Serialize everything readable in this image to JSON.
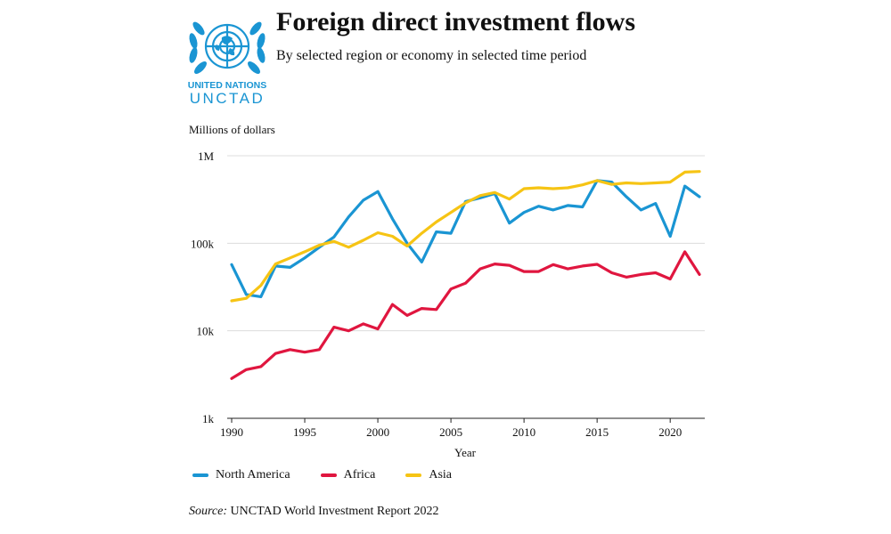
{
  "header": {
    "title": "Foreign direct investment flows",
    "subtitle": "By selected region or economy in selected time period"
  },
  "logo": {
    "org_name": "UNITED NATIONS",
    "org_short": "UNCTAD",
    "color": "#1a95d3"
  },
  "source": {
    "prefix": "Source:",
    "text": "UNCTAD World Investment Report 2022"
  },
  "chart_data": {
    "type": "line",
    "title": "Foreign direct investment flows",
    "subtitle": "By selected region or economy in selected time period",
    "xlabel": "Year",
    "ylabel": "Millions of dollars",
    "yscale": "log",
    "ylim": [
      1000,
      1000000
    ],
    "xlim": [
      1990,
      2022
    ],
    "yticks": [
      {
        "value": 1000,
        "label": "1k"
      },
      {
        "value": 10000,
        "label": "10k"
      },
      {
        "value": 100000,
        "label": "100k"
      },
      {
        "value": 1000000,
        "label": "1M"
      }
    ],
    "xticks": [
      1990,
      1995,
      2000,
      2005,
      2010,
      2015,
      2020
    ],
    "grid": true,
    "legend_position": "bottom-left",
    "x": [
      1990,
      1991,
      1992,
      1993,
      1994,
      1995,
      1996,
      1997,
      1998,
      1999,
      2000,
      2001,
      2002,
      2003,
      2004,
      2005,
      2006,
      2007,
      2008,
      2009,
      2010,
      2011,
      2012,
      2013,
      2014,
      2015,
      2016,
      2017,
      2018,
      2019,
      2020,
      2021,
      2022
    ],
    "series": [
      {
        "name": "North America",
        "color": "#1a95d3",
        "values": [
          57000,
          26000,
          24500,
          55000,
          53000,
          68000,
          90000,
          118000,
          200000,
          310000,
          390000,
          190000,
          100000,
          61000,
          135000,
          130000,
          300000,
          330000,
          370000,
          170000,
          225000,
          265000,
          240000,
          270000,
          260000,
          520000,
          500000,
          340000,
          240000,
          285000,
          120000,
          450000,
          340000
        ]
      },
      {
        "name": "Africa",
        "color": "#e0163f",
        "values": [
          2850,
          3600,
          3900,
          5500,
          6100,
          5700,
          6100,
          11000,
          10000,
          12000,
          10500,
          20000,
          15000,
          18000,
          17500,
          30000,
          35000,
          51000,
          58000,
          56000,
          47500,
          47500,
          57000,
          51000,
          55000,
          57500,
          46000,
          41000,
          44000,
          46000,
          39000,
          80000,
          44000
        ]
      },
      {
        "name": "Asia",
        "color": "#f6c414",
        "values": [
          22000,
          23500,
          33000,
          58000,
          68000,
          80000,
          95000,
          105000,
          90000,
          108000,
          132000,
          120000,
          93000,
          130000,
          175000,
          225000,
          290000,
          350000,
          380000,
          320000,
          420000,
          430000,
          420000,
          430000,
          465000,
          520000,
          470000,
          490000,
          480000,
          490000,
          500000,
          650000,
          660000
        ]
      }
    ]
  }
}
